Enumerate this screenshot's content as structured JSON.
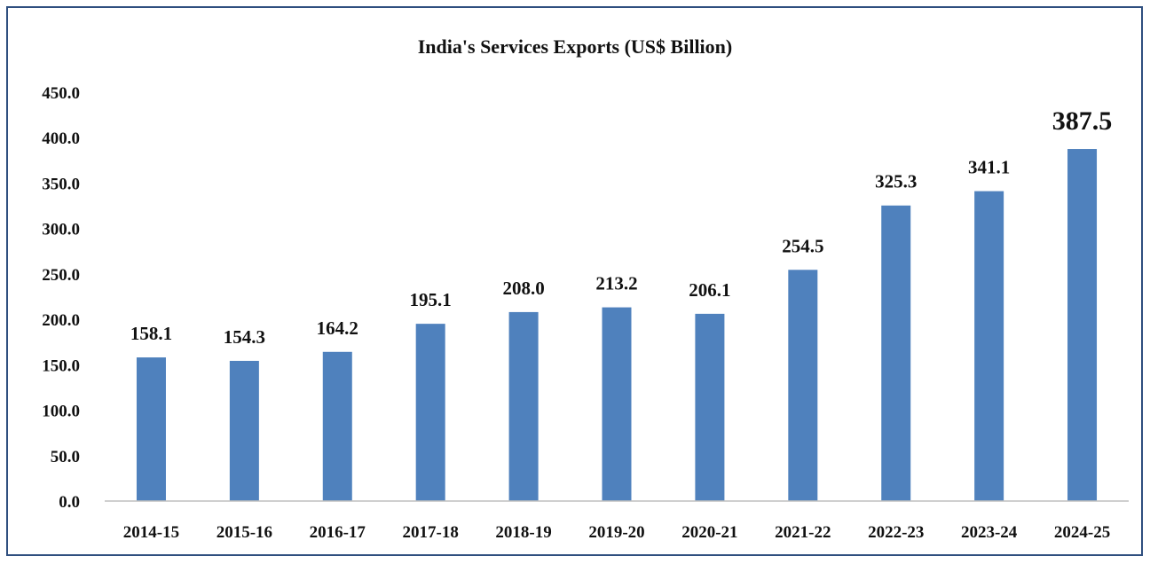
{
  "chart_data": {
    "type": "bar",
    "title": "India's  Services Exports  (US$ Billion)",
    "categories": [
      "2014-15",
      "2015-16",
      "2016-17",
      "2017-18",
      "2018-19",
      "2019-20",
      "2020-21",
      "2021-22",
      "2022-23",
      "2023-24",
      "2024-25"
    ],
    "values": [
      158.1,
      154.3,
      164.2,
      195.1,
      208.0,
      213.2,
      206.1,
      254.5,
      325.3,
      341.1,
      387.5
    ],
    "data_labels": [
      "158.1",
      "154.3",
      "164.2",
      "195.1",
      "208.0",
      "213.2",
      "206.1",
      "254.5",
      "325.3",
      "341.1",
      "387.5"
    ],
    "y_ticks": [
      "0.0",
      "50.0",
      "100.0",
      "150.0",
      "200.0",
      "250.0",
      "300.0",
      "350.0",
      "400.0",
      "450.0"
    ],
    "ylim": [
      0,
      450
    ],
    "xlabel": "",
    "ylabel": "",
    "grid": false,
    "legend": "none",
    "bar_color": "#4f81bd",
    "highlight_index": 10
  }
}
